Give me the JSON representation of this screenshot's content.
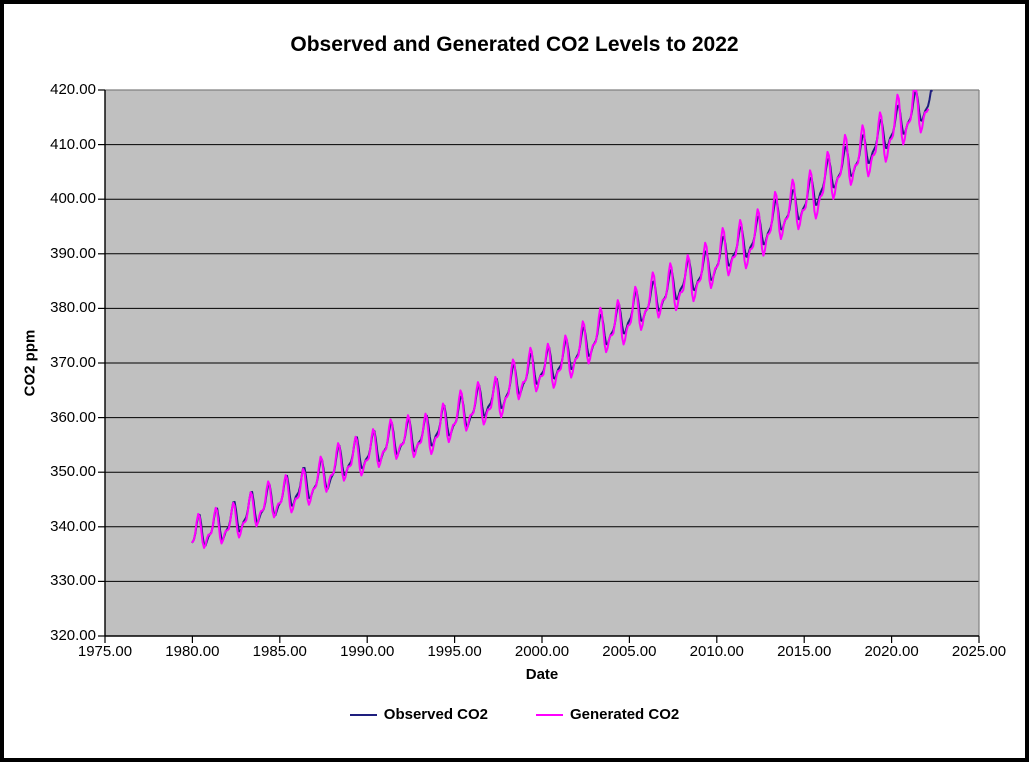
{
  "page": {
    "background": "#ffffff",
    "frame_color": "#000000"
  },
  "chart": {
    "title": "Observed and Generated CO2 Levels to 2022",
    "x_axis": {
      "label": "Date",
      "tick_labels": [
        "1975.00",
        "1980.00",
        "1985.00",
        "1990.00",
        "1995.00",
        "2000.00",
        "2005.00",
        "2010.00",
        "2015.00",
        "2020.00",
        "2025.00"
      ]
    },
    "y_axis": {
      "label": "CO2 ppm",
      "tick_labels": [
        "420.00",
        "410.00",
        "400.00",
        "390.00",
        "380.00",
        "370.00",
        "360.00",
        "350.00",
        "340.00",
        "330.00",
        "320.00"
      ]
    }
  },
  "chart_data": {
    "type": "line",
    "title": "Observed and Generated CO2 Levels to 2022",
    "xlabel": "Date",
    "ylabel": "CO2 ppm",
    "xlim": [
      1975,
      2025
    ],
    "ylim": [
      320,
      420
    ],
    "x_ticks": [
      1975,
      1980,
      1985,
      1990,
      1995,
      2000,
      2005,
      2010,
      2015,
      2020,
      2025
    ],
    "y_ticks": [
      320,
      330,
      340,
      350,
      360,
      370,
      380,
      390,
      400,
      410,
      420
    ],
    "grid": "horizontal",
    "plot_bg": "#c0c0c0",
    "gridline_color": "#000000",
    "plot_border_color": "#808080",
    "axis_color": "#000000",
    "legend_position": "bottom",
    "baseline": {
      "description": "Annual mean CO2 (ppm) at mid-year anchors, read off chart; both series follow this trend with a seasonal cycle on top",
      "start_year": 1980,
      "anchor_offset_years": 0.5,
      "annual_means": [
        338.8,
        340.1,
        341.4,
        343.0,
        344.6,
        346.1,
        347.4,
        349.2,
        351.6,
        353.1,
        354.4,
        355.6,
        356.4,
        357.1,
        358.8,
        360.8,
        362.6,
        363.7,
        366.7,
        368.4,
        369.5,
        371.1,
        373.2,
        375.8,
        377.5,
        379.8,
        381.9,
        383.8,
        385.6,
        387.4,
        389.9,
        391.7,
        393.8,
        396.5,
        398.6,
        400.8,
        404.2,
        406.6,
        408.5,
        411.4,
        414.2,
        416.4,
        418.5
      ]
    },
    "value_clamp": [
      320.5,
      419.85
    ],
    "series": [
      {
        "id": "observed",
        "name": "Observed CO2",
        "color": "#1e1e7e",
        "stroke_width": 2,
        "t_start": 1980.0,
        "t_end": 2022.3,
        "samples_per_year": 12,
        "offset": 0,
        "phase_lead_years": 0,
        "seasonal_harmonics": [
          {
            "k": 1,
            "amp": 2.5,
            "phase": -0.503
          },
          {
            "k": 2,
            "amp": 1.0,
            "phase": -3.456
          }
        ],
        "seasonal_amp_start": 1.08,
        "seasonal_amp_growth_per_year": 0,
        "wiggle": {
          "amp": 0.15,
          "freq": 2.3,
          "phase": 0
        }
      },
      {
        "id": "generated",
        "name": "Generated CO2",
        "color": "#ff00ff",
        "stroke_width": 2,
        "t_start": 1980.0,
        "t_end": 2022.12,
        "samples_per_year": 12,
        "offset": -0.3,
        "phase_lead_years": 0.04,
        "seasonal_harmonics": [
          {
            "k": 1,
            "amp": 2.6,
            "phase": -0.55
          },
          {
            "k": 2,
            "amp": 1.35,
            "phase": -3.6
          }
        ],
        "seasonal_amp_start": 1.0,
        "seasonal_amp_growth_per_year": 0.013,
        "wiggle": {
          "amp": 0.35,
          "freq": 1.7,
          "phase": 0.6
        }
      }
    ]
  }
}
